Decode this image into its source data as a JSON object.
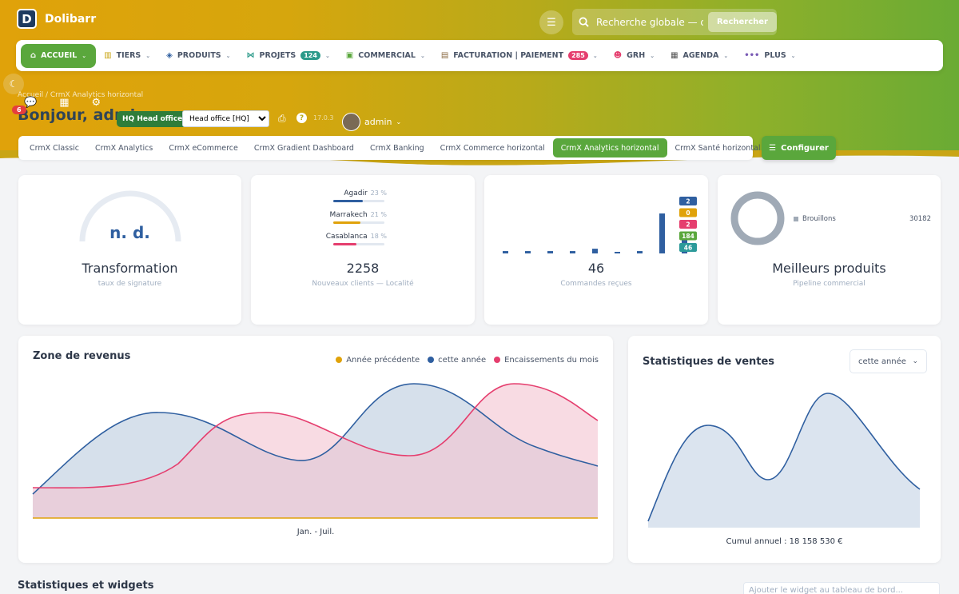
{
  "app": {
    "logo_letter": "D",
    "name": "Dolibarr"
  },
  "search": {
    "placeholder": "Recherche globale — c",
    "button": "Rechercher"
  },
  "nav": [
    {
      "label": "ACCUEIL",
      "icon": "home-icon",
      "active": true
    },
    {
      "label": "TIERS",
      "icon": "building-icon"
    },
    {
      "label": "PRODUITS",
      "icon": "box-icon"
    },
    {
      "label": "PROJETS",
      "icon": "project-icon",
      "badge": "124",
      "badge_color": "#2c9a8a"
    },
    {
      "label": "COMMERCIAL",
      "icon": "briefcase-icon"
    },
    {
      "label": "FACTURATION | PAIEMENT",
      "icon": "invoice-icon",
      "badge": "285",
      "badge_color": "#e53e6e"
    },
    {
      "label": "GRH",
      "icon": "user-icon"
    },
    {
      "label": "AGENDA",
      "icon": "calendar-icon"
    },
    {
      "label": "PLUS",
      "icon": "more-icon"
    }
  ],
  "header": {
    "breadcrumb": "Accueil  /  CrmX Analytics horizontal",
    "greeting": "Bonjour, admin",
    "notifications": "6",
    "hq_badge": "HQ Head office",
    "hq_select": "Head office [HQ]",
    "version": "17.0.3",
    "user": "admin"
  },
  "tabs": [
    "CrmX Classic",
    "CrmX Analytics",
    "CrmX eCommerce",
    "CrmX Gradient Dashboard",
    "CrmX Banking",
    "CrmX Commerce horizontal",
    "CrmX Analytics horizontal",
    "CrmX Santé horizontal"
  ],
  "active_tab": 6,
  "config_button": "Configurer",
  "kpi": {
    "transformation": {
      "value": "n. d.",
      "title": "Transformation",
      "sub": "taux de signature"
    },
    "clients": {
      "title": "2258",
      "sub": "Nouveaux clients — Localité",
      "rows": [
        {
          "name": "Agadir",
          "pct": "23 %",
          "value": 23,
          "color": "#2f5fa0"
        },
        {
          "name": "Marrakech",
          "pct": "21 %",
          "value": 21,
          "color": "#e0a20a"
        },
        {
          "name": "Casablanca",
          "pct": "18 %",
          "value": 18,
          "color": "#e53e6e"
        }
      ]
    },
    "orders": {
      "title": "46",
      "sub": "Commandes reçues",
      "bars": [
        1,
        1,
        1,
        1,
        2,
        0.5,
        1,
        17,
        8
      ],
      "badges": [
        {
          "label": "2",
          "color": "#2f5fa0"
        },
        {
          "label": "0",
          "color": "#e0a20a"
        },
        {
          "label": "2",
          "color": "#e53e6e"
        },
        {
          "label": "184",
          "color": "#5aa73c"
        },
        {
          "label": "46",
          "color": "#2c9a9a"
        }
      ]
    },
    "products": {
      "title": "Meilleurs produits",
      "sub": "Pipeline commercial",
      "legend": "Brouillons",
      "value": "30182"
    }
  },
  "revenue": {
    "title": "Zone de revenus",
    "legend": [
      {
        "name": "Année précédente",
        "color": "#e0a20a"
      },
      {
        "name": "cette année",
        "color": "#2f5fa0"
      },
      {
        "name": "Encaissements du mois",
        "color": "#e53e6e"
      }
    ],
    "xlabel": "Jan. - Juil."
  },
  "sales": {
    "title": "Statistiques de ventes",
    "period": "cette année",
    "footer": "Cumul annuel : 18 158 530 €"
  },
  "widgets": {
    "title": "Statistiques et widgets",
    "placeholder": "Ajouter le widget au tableau de bord..."
  }
}
